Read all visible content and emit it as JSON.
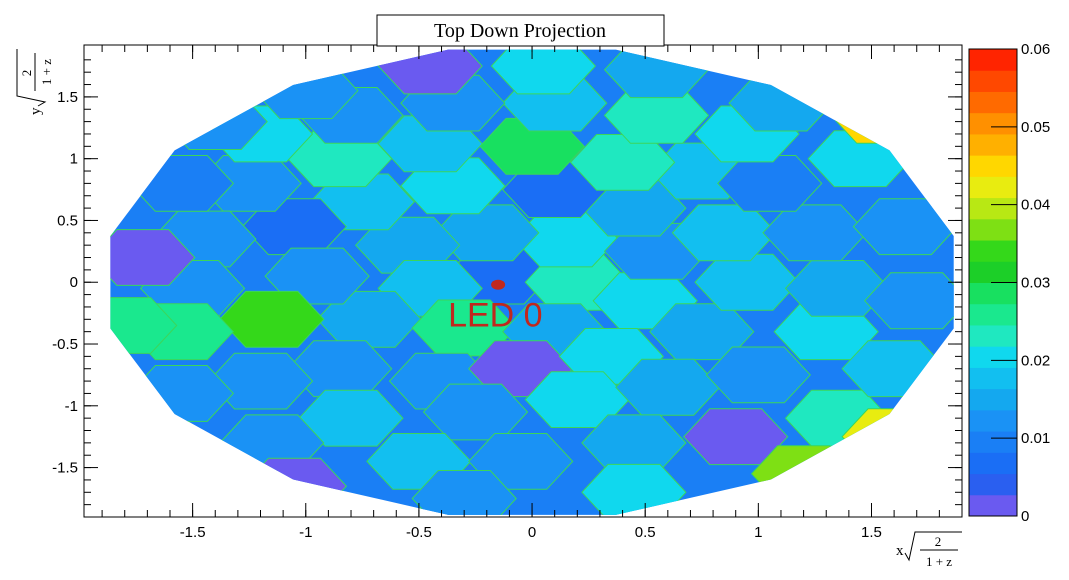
{
  "chart_data": {
    "type": "heatmap",
    "title": "Top Down Projection",
    "xlabel": "x √(2/(1+z))",
    "ylabel": "y √(2/(1+z))",
    "xlim": [
      -1.98,
      1.9
    ],
    "ylim": [
      -1.9,
      1.92
    ],
    "x_ticks": [
      "-1.5",
      "-1",
      "-0.5",
      "0",
      "0.5",
      "1",
      "1.5"
    ],
    "y_ticks": [
      "-1.5",
      "-1",
      "-0.5",
      "0",
      "0.5",
      "1",
      "1.5"
    ],
    "colorbar": {
      "range": [
        0,
        0.06
      ],
      "ticks": [
        "0",
        "0.01",
        "0.02",
        "0.03",
        "0.04",
        "0.05",
        "0.06"
      ],
      "colors": [
        "#6a5af0",
        "#2a5ff0",
        "#1a6ef5",
        "#1a7ff5",
        "#1a92f5",
        "#14a8ef",
        "#12bff0",
        "#10d8ee",
        "#1fe8c0",
        "#1ae88e",
        "#18e060",
        "#1ccf28",
        "#34d81a",
        "#7ee014",
        "#b8e814",
        "#e8ec10",
        "#ffd700",
        "#ffb000",
        "#ff9000",
        "#ff6a00",
        "#ff4800",
        "#ff2400"
      ],
      "grid": true
    },
    "annotation": {
      "text": "LED 0",
      "x": -0.15,
      "y": -0.02
    },
    "marker": {
      "x": -0.15,
      "y": -0.02
    },
    "cells": [
      {
        "x": -0.15,
        "y": 0.05,
        "v": 0.008
      },
      {
        "x": 0.2,
        "y": 0.0,
        "v": 0.022
      },
      {
        "x": 0.15,
        "y": 0.35,
        "v": 0.02
      },
      {
        "x": -0.2,
        "y": 0.4,
        "v": 0.016
      },
      {
        "x": -0.55,
        "y": 0.3,
        "v": 0.014
      },
      {
        "x": -0.45,
        "y": -0.05,
        "v": 0.017
      },
      {
        "x": -0.72,
        "y": -0.3,
        "v": 0.014
      },
      {
        "x": -0.3,
        "y": -0.37,
        "v": 0.027
      },
      {
        "x": 0.1,
        "y": -0.4,
        "v": 0.014
      },
      {
        "x": 0.5,
        "y": -0.15,
        "v": 0.021
      },
      {
        "x": 0.55,
        "y": 0.25,
        "v": 0.011
      },
      {
        "x": 0.45,
        "y": 0.6,
        "v": 0.014
      },
      {
        "x": 0.1,
        "y": 0.75,
        "v": 0.007
      },
      {
        "x": -0.35,
        "y": 0.78,
        "v": 0.02
      },
      {
        "x": -0.75,
        "y": 0.65,
        "v": 0.018
      },
      {
        "x": -1.05,
        "y": 0.45,
        "v": 0.007
      },
      {
        "x": -0.95,
        "y": 0.05,
        "v": 0.013
      },
      {
        "x": -1.15,
        "y": -0.3,
        "v": 0.033
      },
      {
        "x": -0.85,
        "y": -0.7,
        "v": 0.012
      },
      {
        "x": -0.4,
        "y": -0.8,
        "v": 0.011
      },
      {
        "x": -0.05,
        "y": -0.7,
        "v": 0.002
      },
      {
        "x": 0.35,
        "y": -0.6,
        "v": 0.021
      },
      {
        "x": 0.75,
        "y": -0.4,
        "v": 0.014
      },
      {
        "x": 0.95,
        "y": 0.0,
        "v": 0.017
      },
      {
        "x": 0.85,
        "y": 0.4,
        "v": 0.019
      },
      {
        "x": 0.75,
        "y": 0.9,
        "v": 0.017
      },
      {
        "x": 0.4,
        "y": 0.97,
        "v": 0.023
      },
      {
        "x": 0.0,
        "y": 1.1,
        "v": 0.029
      },
      {
        "x": -0.45,
        "y": 1.12,
        "v": 0.017
      },
      {
        "x": -0.85,
        "y": 1.0,
        "v": 0.024
      },
      {
        "x": -1.25,
        "y": 0.8,
        "v": 0.012
      },
      {
        "x": -1.45,
        "y": 0.35,
        "v": 0.012
      },
      {
        "x": -1.5,
        "y": -0.05,
        "v": 0.011
      },
      {
        "x": -1.55,
        "y": -0.4,
        "v": 0.027
      },
      {
        "x": -1.2,
        "y": -0.8,
        "v": 0.013
      },
      {
        "x": -0.8,
        "y": -1.1,
        "v": 0.019
      },
      {
        "x": -0.25,
        "y": -1.05,
        "v": 0.013
      },
      {
        "x": 0.2,
        "y": -0.95,
        "v": 0.021
      },
      {
        "x": 0.6,
        "y": -0.85,
        "v": 0.016
      },
      {
        "x": 1.0,
        "y": -0.75,
        "v": 0.013
      },
      {
        "x": 1.3,
        "y": -0.4,
        "v": 0.021
      },
      {
        "x": 1.35,
        "y": -0.05,
        "v": 0.016
      },
      {
        "x": 1.25,
        "y": 0.4,
        "v": 0.011
      },
      {
        "x": 1.05,
        "y": 0.8,
        "v": 0.009
      },
      {
        "x": 0.95,
        "y": 1.2,
        "v": 0.021
      },
      {
        "x": 0.55,
        "y": 1.35,
        "v": 0.023
      },
      {
        "x": 0.1,
        "y": 1.45,
        "v": 0.017
      },
      {
        "x": -0.35,
        "y": 1.45,
        "v": 0.012
      },
      {
        "x": -0.8,
        "y": 1.35,
        "v": 0.012
      },
      {
        "x": -1.2,
        "y": 1.2,
        "v": 0.021
      },
      {
        "x": -1.55,
        "y": 0.8,
        "v": 0.009
      },
      {
        "x": -1.72,
        "y": 0.2,
        "v": 0.002
      },
      {
        "x": -1.8,
        "y": -0.35,
        "v": 0.025
      },
      {
        "x": -1.55,
        "y": -0.9,
        "v": 0.012
      },
      {
        "x": -1.15,
        "y": -1.3,
        "v": 0.013
      },
      {
        "x": -0.5,
        "y": -1.45,
        "v": 0.019
      },
      {
        "x": -0.05,
        "y": -1.45,
        "v": 0.013
      },
      {
        "x": 0.45,
        "y": -1.3,
        "v": 0.016
      },
      {
        "x": 0.9,
        "y": -1.25,
        "v": 0.002
      },
      {
        "x": 1.35,
        "y": -1.1,
        "v": 0.024
      },
      {
        "x": 1.6,
        "y": -0.7,
        "v": 0.018
      },
      {
        "x": 1.7,
        "y": -0.15,
        "v": 0.013
      },
      {
        "x": 1.65,
        "y": 0.45,
        "v": 0.011
      },
      {
        "x": 1.45,
        "y": 1.0,
        "v": 0.02
      },
      {
        "x": 1.1,
        "y": 1.45,
        "v": 0.014
      },
      {
        "x": 0.55,
        "y": 1.72,
        "v": 0.014
      },
      {
        "x": 0.05,
        "y": 1.75,
        "v": 0.021
      },
      {
        "x": -0.45,
        "y": 1.75,
        "v": 0.002
      },
      {
        "x": -1.0,
        "y": 1.55,
        "v": 0.013
      },
      {
        "x": -1.4,
        "y": 1.3,
        "v": 0.013
      },
      {
        "x": -1.05,
        "y": -1.65,
        "v": 0.002
      },
      {
        "x": -0.3,
        "y": -1.75,
        "v": 0.011
      },
      {
        "x": 0.45,
        "y": -1.7,
        "v": 0.021
      },
      {
        "x": 1.2,
        "y": -1.55,
        "v": 0.038
      },
      {
        "x": 1.6,
        "y": -1.25,
        "v": 0.042
      },
      {
        "x": 1.55,
        "y": 1.35,
        "v": 0.045
      }
    ]
  }
}
